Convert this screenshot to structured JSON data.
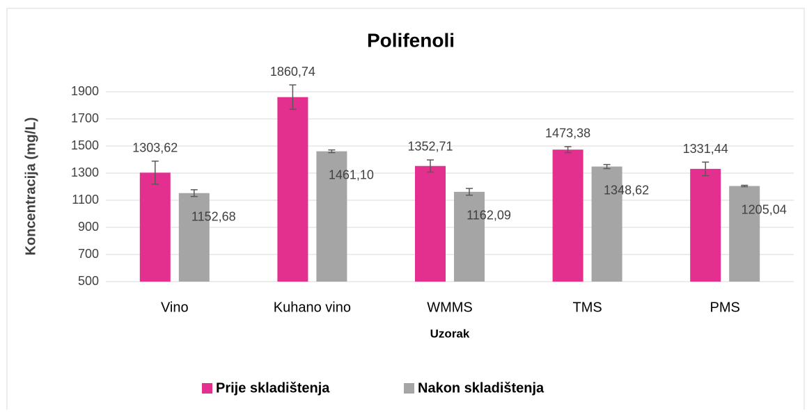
{
  "chart_data": {
    "type": "bar",
    "title": "Polifenoli",
    "x_label": "Uzorak",
    "y_label": "Koncentracija (mg/L)",
    "categories": [
      "Vino",
      "Kuhano vino",
      "WMMS",
      "TMS",
      "PMS"
    ],
    "series": [
      {
        "name": "Prije skladištenja",
        "color": "#e3308e",
        "values": [
          1303.62,
          1860.74,
          1352.71,
          1473.38,
          1331.44
        ],
        "value_labels": [
          "1303,62",
          "1860,74",
          "1352,71",
          "1473,38",
          "1331,44"
        ],
        "errors": [
          85,
          90,
          45,
          22,
          50
        ]
      },
      {
        "name": "Nakon skladištenja",
        "color": "#a5a5a5",
        "values": [
          1152.68,
          1461.1,
          1162.09,
          1348.62,
          1205.04
        ],
        "value_labels": [
          "1152,68",
          "1461,10",
          "1162,09",
          "1348,62",
          "1205,04"
        ],
        "errors": [
          25,
          10,
          25,
          15,
          5
        ]
      }
    ],
    "ylim": [
      500,
      1900
    ],
    "yticks": [
      500,
      700,
      900,
      1100,
      1300,
      1500,
      1700,
      1900
    ],
    "grid": true,
    "legend": "bottom"
  }
}
